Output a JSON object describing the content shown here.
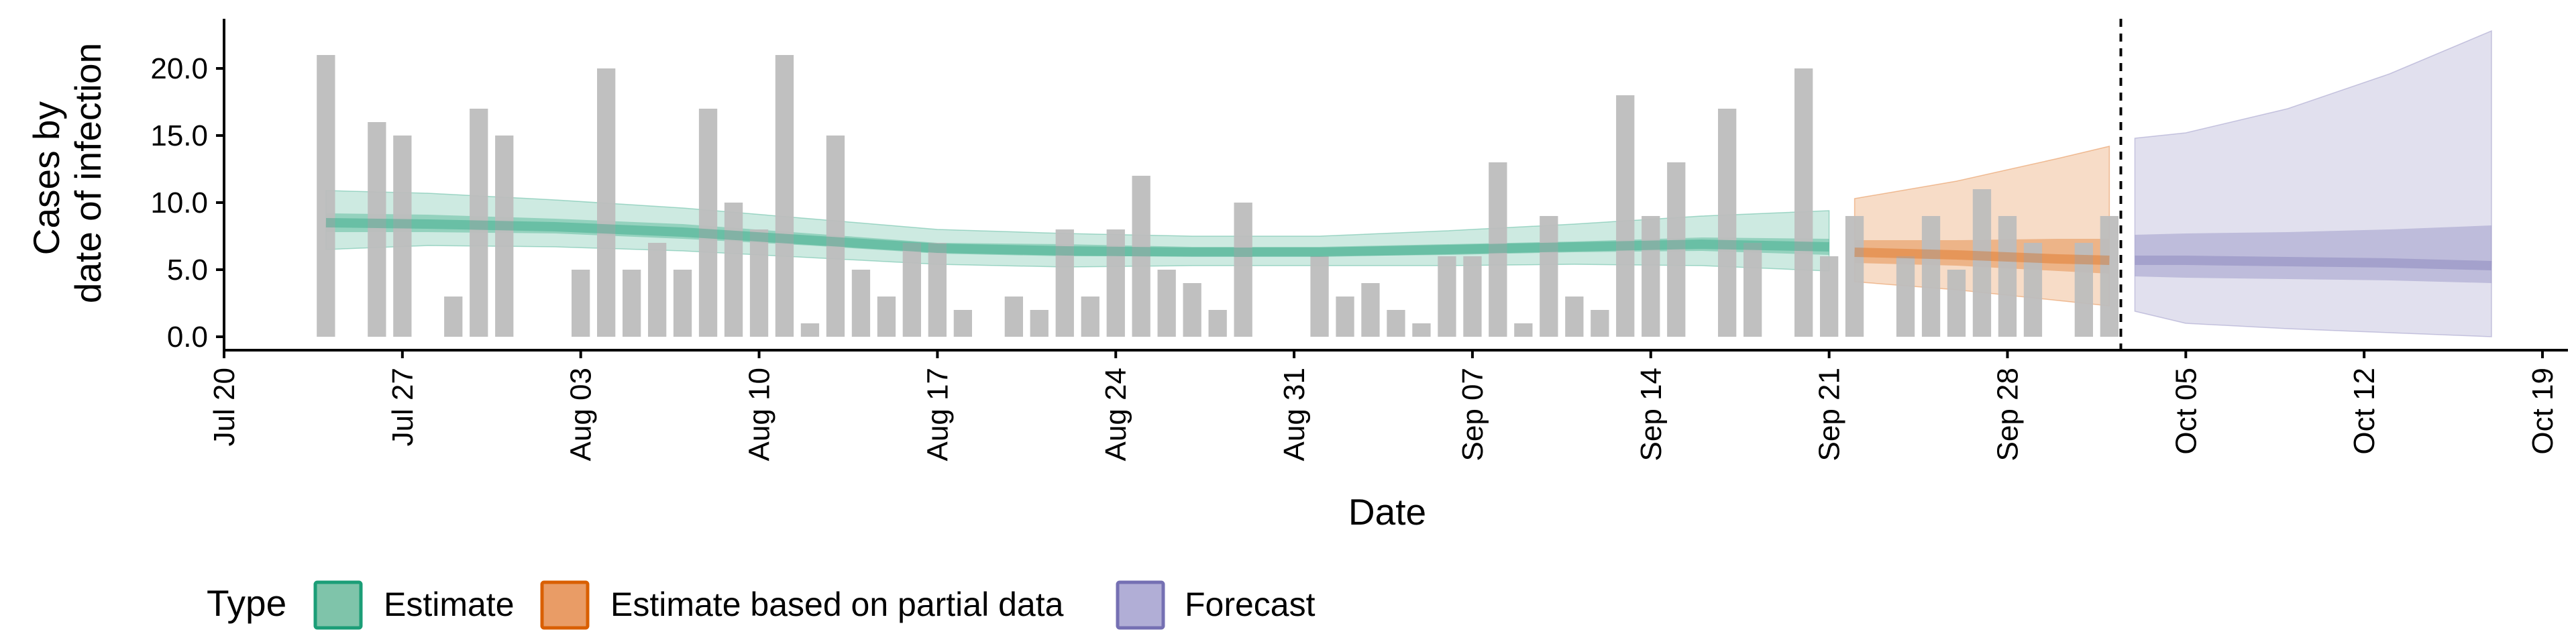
{
  "chart_data": {
    "type": "bar",
    "xlabel": "Date",
    "ylabel": [
      "Cases by",
      "date of infection"
    ],
    "y_ticks": [
      "0.0",
      "5.0",
      "10.0",
      "15.0",
      "20.0"
    ],
    "ylim": [
      0,
      23
    ],
    "x_ticks": [
      "Jul 20",
      "Jul 27",
      "Aug 03",
      "Aug 10",
      "Aug 17",
      "Aug 24",
      "Aug 31",
      "Sep 07",
      "Sep 14",
      "Sep 21",
      "Sep 28",
      "Oct 05",
      "Oct 12",
      "Oct 19"
    ],
    "x_tick_dates": [
      "2020-07-20",
      "2020-07-27",
      "2020-08-03",
      "2020-08-10",
      "2020-08-17",
      "2020-08-24",
      "2020-08-31",
      "2020-09-07",
      "2020-09-14",
      "2020-09-21",
      "2020-09-28",
      "2020-10-05",
      "2020-10-12",
      "2020-10-19"
    ],
    "xlim": [
      "2020-07-20",
      "2020-10-20"
    ],
    "vline_date": "2020-10-02",
    "bars": {
      "dates": [
        "2020-07-24",
        "2020-07-25",
        "2020-07-26",
        "2020-07-27",
        "2020-07-28",
        "2020-07-29",
        "2020-07-30",
        "2020-07-31",
        "2020-08-01",
        "2020-08-02",
        "2020-08-03",
        "2020-08-04",
        "2020-08-05",
        "2020-08-06",
        "2020-08-07",
        "2020-08-08",
        "2020-08-09",
        "2020-08-10",
        "2020-08-11",
        "2020-08-12",
        "2020-08-13",
        "2020-08-14",
        "2020-08-15",
        "2020-08-16",
        "2020-08-17",
        "2020-08-18",
        "2020-08-19",
        "2020-08-20",
        "2020-08-21",
        "2020-08-22",
        "2020-08-23",
        "2020-08-24",
        "2020-08-25",
        "2020-08-26",
        "2020-08-27",
        "2020-08-28",
        "2020-08-29",
        "2020-08-30",
        "2020-08-31",
        "2020-09-01",
        "2020-09-02",
        "2020-09-03",
        "2020-09-04",
        "2020-09-05",
        "2020-09-06",
        "2020-09-07",
        "2020-09-08",
        "2020-09-09",
        "2020-09-10",
        "2020-09-11",
        "2020-09-12",
        "2020-09-13",
        "2020-09-14",
        "2020-09-15",
        "2020-09-16",
        "2020-09-17",
        "2020-09-18",
        "2020-09-19",
        "2020-09-20",
        "2020-09-21",
        "2020-09-22",
        "2020-09-23",
        "2020-09-24",
        "2020-09-25",
        "2020-09-26",
        "2020-09-27",
        "2020-09-28",
        "2020-09-29",
        "2020-09-30",
        "2020-10-01",
        "2020-10-02"
      ],
      "values": [
        21,
        0,
        16,
        15,
        0,
        3,
        17,
        15,
        0,
        0,
        5,
        20,
        5,
        7,
        5,
        17,
        10,
        8,
        21,
        1,
        15,
        5,
        3,
        7,
        7,
        2,
        0,
        3,
        2,
        8,
        3,
        8,
        12,
        5,
        4,
        2,
        10,
        0,
        0,
        6,
        3,
        4,
        2,
        1,
        6,
        6,
        13,
        1,
        9,
        3,
        2,
        18,
        9,
        13,
        0,
        17,
        7,
        0,
        20,
        6,
        9,
        0,
        6,
        9,
        5,
        11,
        9,
        7,
        0,
        7,
        9
      ]
    },
    "series": [
      {
        "name": "Estimate",
        "dates": [
          "2020-07-24",
          "2020-07-28",
          "2020-08-02",
          "2020-08-07",
          "2020-08-12",
          "2020-08-17",
          "2020-08-22",
          "2020-08-27",
          "2020-09-01",
          "2020-09-06",
          "2020-09-11",
          "2020-09-16",
          "2020-09-21"
        ],
        "median": [
          8.5,
          8.4,
          8.2,
          7.8,
          7.2,
          6.6,
          6.4,
          6.3,
          6.3,
          6.5,
          6.7,
          6.9,
          6.7
        ],
        "lower50": [
          7.8,
          7.8,
          7.7,
          7.3,
          6.8,
          6.2,
          6.0,
          6.0,
          6.0,
          6.1,
          6.3,
          6.4,
          6.1
        ],
        "upper50": [
          9.2,
          9.1,
          8.8,
          8.4,
          7.7,
          7.0,
          6.9,
          6.7,
          6.7,
          6.9,
          7.1,
          7.4,
          7.3
        ],
        "lower90": [
          6.5,
          6.8,
          6.7,
          6.4,
          5.9,
          5.4,
          5.2,
          5.3,
          5.3,
          5.3,
          5.4,
          5.3,
          4.9
        ],
        "upper90": [
          10.9,
          10.7,
          10.2,
          9.6,
          8.8,
          8.0,
          7.7,
          7.5,
          7.5,
          7.9,
          8.4,
          9.0,
          9.4
        ]
      },
      {
        "name": "Estimate based on partial data",
        "dates": [
          "2020-09-22",
          "2020-09-26",
          "2020-09-30",
          "2020-10-02"
        ],
        "median": [
          6.3,
          6.1,
          5.8,
          5.7
        ],
        "lower50": [
          5.5,
          5.3,
          4.9,
          4.7
        ],
        "upper50": [
          7.2,
          7.2,
          7.3,
          7.3
        ],
        "lower90": [
          4.1,
          3.5,
          2.7,
          2.3
        ],
        "upper90": [
          10.3,
          11.6,
          13.3,
          14.2
        ]
      },
      {
        "name": "Forecast",
        "dates": [
          "2020-10-03",
          "2020-10-05",
          "2020-10-09",
          "2020-10-13",
          "2020-10-17"
        ],
        "median": [
          5.7,
          5.7,
          5.6,
          5.5,
          5.3
        ],
        "lower50": [
          4.5,
          4.4,
          4.3,
          4.2,
          4.0
        ],
        "upper50": [
          7.6,
          7.7,
          7.8,
          8.0,
          8.3
        ],
        "lower90": [
          1.9,
          1.0,
          0.6,
          0.3,
          0.0
        ],
        "upper90": [
          14.8,
          15.2,
          17.0,
          19.6,
          22.8
        ]
      }
    ],
    "legend": {
      "title": "Type",
      "placement": "bottom",
      "items": [
        {
          "label": "Estimate",
          "fill": "#7fc4aa",
          "border": "#1b9e77"
        },
        {
          "label": "Estimate based on partial data",
          "fill": "#e99c66",
          "border": "#d95f02"
        },
        {
          "label": "Forecast",
          "fill": "#b1aed6",
          "border": "#7570b3"
        }
      ]
    },
    "colors": {
      "bars": "#bdbdbd",
      "Estimate": "#1b9e77",
      "Estimate based on partial data": "#d95f02",
      "Forecast": "#7570b3"
    }
  }
}
